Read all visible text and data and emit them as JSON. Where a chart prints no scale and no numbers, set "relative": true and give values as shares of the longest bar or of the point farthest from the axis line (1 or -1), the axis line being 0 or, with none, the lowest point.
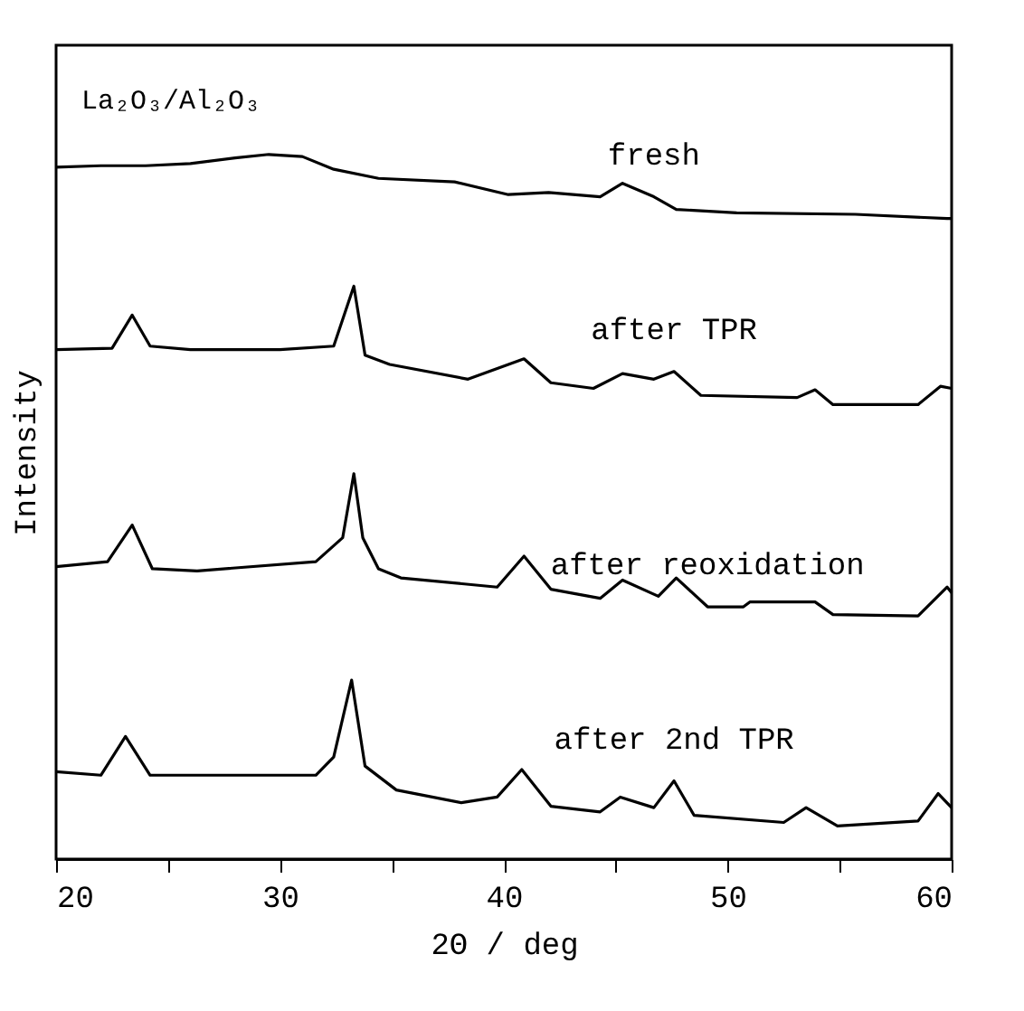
{
  "chart_data": {
    "type": "line",
    "relative": true,
    "xlabel": "2Θ / deg",
    "ylabel": "Intensity",
    "annotations": [
      "La₂O₃/Al₂O₃"
    ],
    "xlim": [
      20,
      60
    ],
    "xticks": [
      20,
      {
        "value": 25,
        "label": null
      },
      30,
      {
        "value": 35,
        "label": null
      },
      40,
      {
        "value": 45,
        "label": null
      },
      50,
      {
        "value": 55,
        "label": null
      },
      60
    ],
    "grid": false,
    "legend": false,
    "marker": "none",
    "line_style": "solid",
    "series": [
      {
        "name": "fresh",
        "color": "#000000",
        "x": [
          20,
          22,
          24,
          26,
          28,
          29.5,
          31,
          32.4,
          34.4,
          37.8,
          40.2,
          42,
          44.3,
          45.3,
          46.7,
          47.7,
          50.4,
          55.7,
          59.8,
          60
        ],
        "values": [
          0.982,
          0.984,
          0.984,
          0.987,
          0.995,
          1.0,
          0.997,
          0.979,
          0.966,
          0.961,
          0.943,
          0.946,
          0.94,
          0.959,
          0.94,
          0.922,
          0.917,
          0.915,
          0.909,
          0.909
        ]
      },
      {
        "name": "after TPR",
        "color": "#000000",
        "x": [
          20,
          22.5,
          23.4,
          24.2,
          26,
          30,
          32.4,
          33.3,
          33.8,
          34.9,
          38.4,
          40.9,
          42.1,
          44,
          45.3,
          46.7,
          47.6,
          48.8,
          53.1,
          53.9,
          54.7,
          58.5,
          59.5,
          60
        ],
        "values": [
          0.723,
          0.725,
          0.772,
          0.728,
          0.723,
          0.723,
          0.728,
          0.813,
          0.715,
          0.702,
          0.681,
          0.71,
          0.676,
          0.668,
          0.689,
          0.681,
          0.692,
          0.658,
          0.655,
          0.666,
          0.645,
          0.645,
          0.671,
          0.668
        ]
      },
      {
        "name": "after reoxidation",
        "color": "#000000",
        "x": [
          20,
          22.3,
          23.4,
          24.3,
          26.3,
          31.6,
          32.8,
          33.3,
          33.7,
          34.4,
          35.4,
          39.7,
          40.9,
          42.1,
          44.3,
          45.3,
          46.9,
          47.7,
          49.1,
          50.7,
          51,
          53.9,
          54.7,
          58.5,
          59.8,
          60
        ],
        "values": [
          0.415,
          0.422,
          0.474,
          0.412,
          0.409,
          0.422,
          0.456,
          0.547,
          0.456,
          0.412,
          0.399,
          0.386,
          0.43,
          0.383,
          0.37,
          0.396,
          0.373,
          0.399,
          0.358,
          0.358,
          0.365,
          0.365,
          0.347,
          0.345,
          0.386,
          0.378
        ]
      },
      {
        "name": "after 2nd TPR",
        "color": "#000000",
        "x": [
          20,
          22,
          23.1,
          24.2,
          31.6,
          32.4,
          33.2,
          33.8,
          35.2,
          38.1,
          39.7,
          40.8,
          42.1,
          44.3,
          45.2,
          46.7,
          47.6,
          48.5,
          52.5,
          53.5,
          54.9,
          58.5,
          59.4,
          60
        ],
        "values": [
          0.124,
          0.119,
          0.174,
          0.119,
          0.119,
          0.145,
          0.254,
          0.132,
          0.098,
          0.08,
          0.088,
          0.127,
          0.075,
          0.067,
          0.088,
          0.073,
          0.111,
          0.062,
          0.052,
          0.073,
          0.047,
          0.054,
          0.093,
          0.073
        ]
      }
    ]
  }
}
